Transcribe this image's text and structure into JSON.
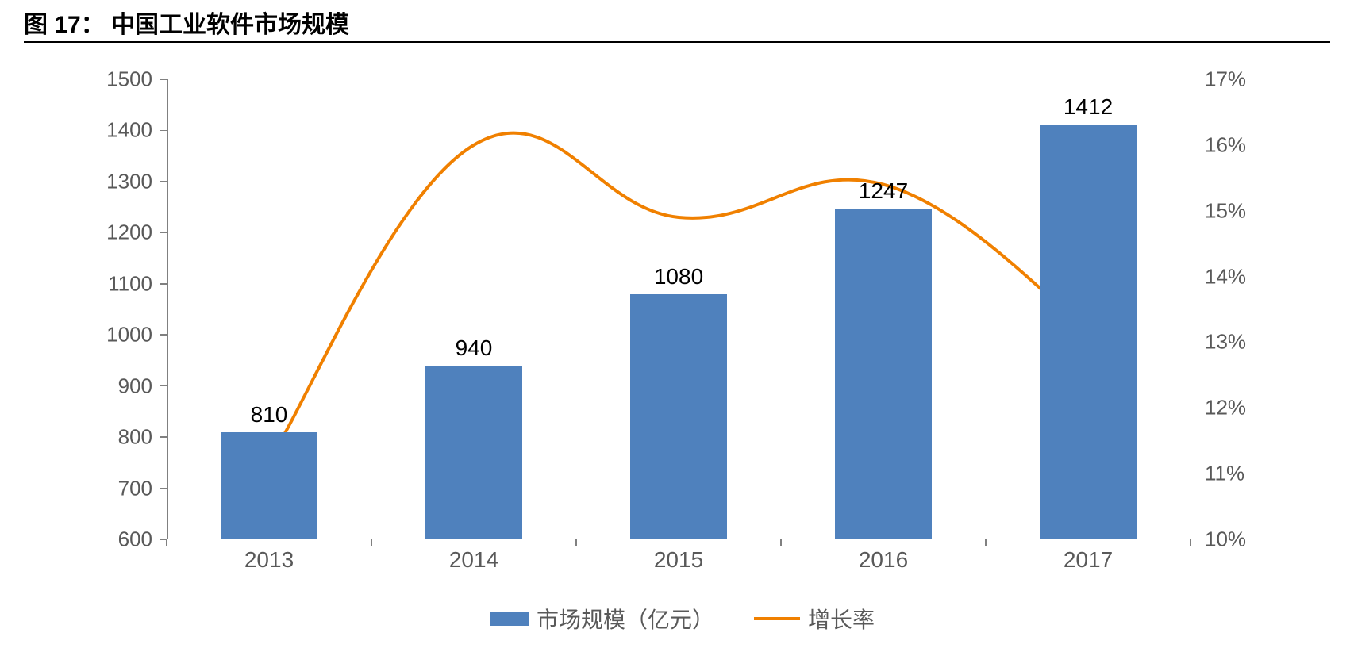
{
  "title_prefix": "图 17：",
  "title_text": "中国工业软件市场规模",
  "chart": {
    "type": "bar+line",
    "categories": [
      "2013",
      "2014",
      "2015",
      "2016",
      "2017"
    ],
    "bars": {
      "label": "市场规模（亿元）",
      "values": [
        810,
        940,
        1080,
        1247,
        1412
      ],
      "value_labels": [
        "810",
        "940",
        "1080",
        "1247",
        "1412"
      ],
      "color": "#4f81bd",
      "bar_width_frac": 0.47,
      "label_fontsize": 28,
      "label_color": "#000000"
    },
    "line": {
      "label": "增长率",
      "values_pct": [
        11.2,
        16.0,
        14.9,
        15.4,
        13.2
      ],
      "color": "#f08000",
      "width": 4
    },
    "y_left": {
      "min": 600,
      "max": 1500,
      "ticks": [
        600,
        700,
        800,
        900,
        1000,
        1100,
        1200,
        1300,
        1400,
        1500
      ],
      "tick_labels": [
        "600",
        "700",
        "800",
        "900",
        "1000",
        "1100",
        "1200",
        "1300",
        "1400",
        "1500"
      ]
    },
    "y_right": {
      "min": 10,
      "max": 17,
      "ticks": [
        10,
        11,
        12,
        13,
        14,
        15,
        16,
        17
      ],
      "tick_labels": [
        "10%",
        "11%",
        "12%",
        "13%",
        "14%",
        "15%",
        "16%",
        "17%"
      ]
    },
    "axis_color": "#808080",
    "tick_label_color": "#595959",
    "tick_label_fontsize": 26,
    "xlabel_fontsize": 28,
    "background_color": "#ffffff",
    "title_fontsize": 30,
    "title_color": "#000000",
    "title_rule_color": "#000000"
  }
}
